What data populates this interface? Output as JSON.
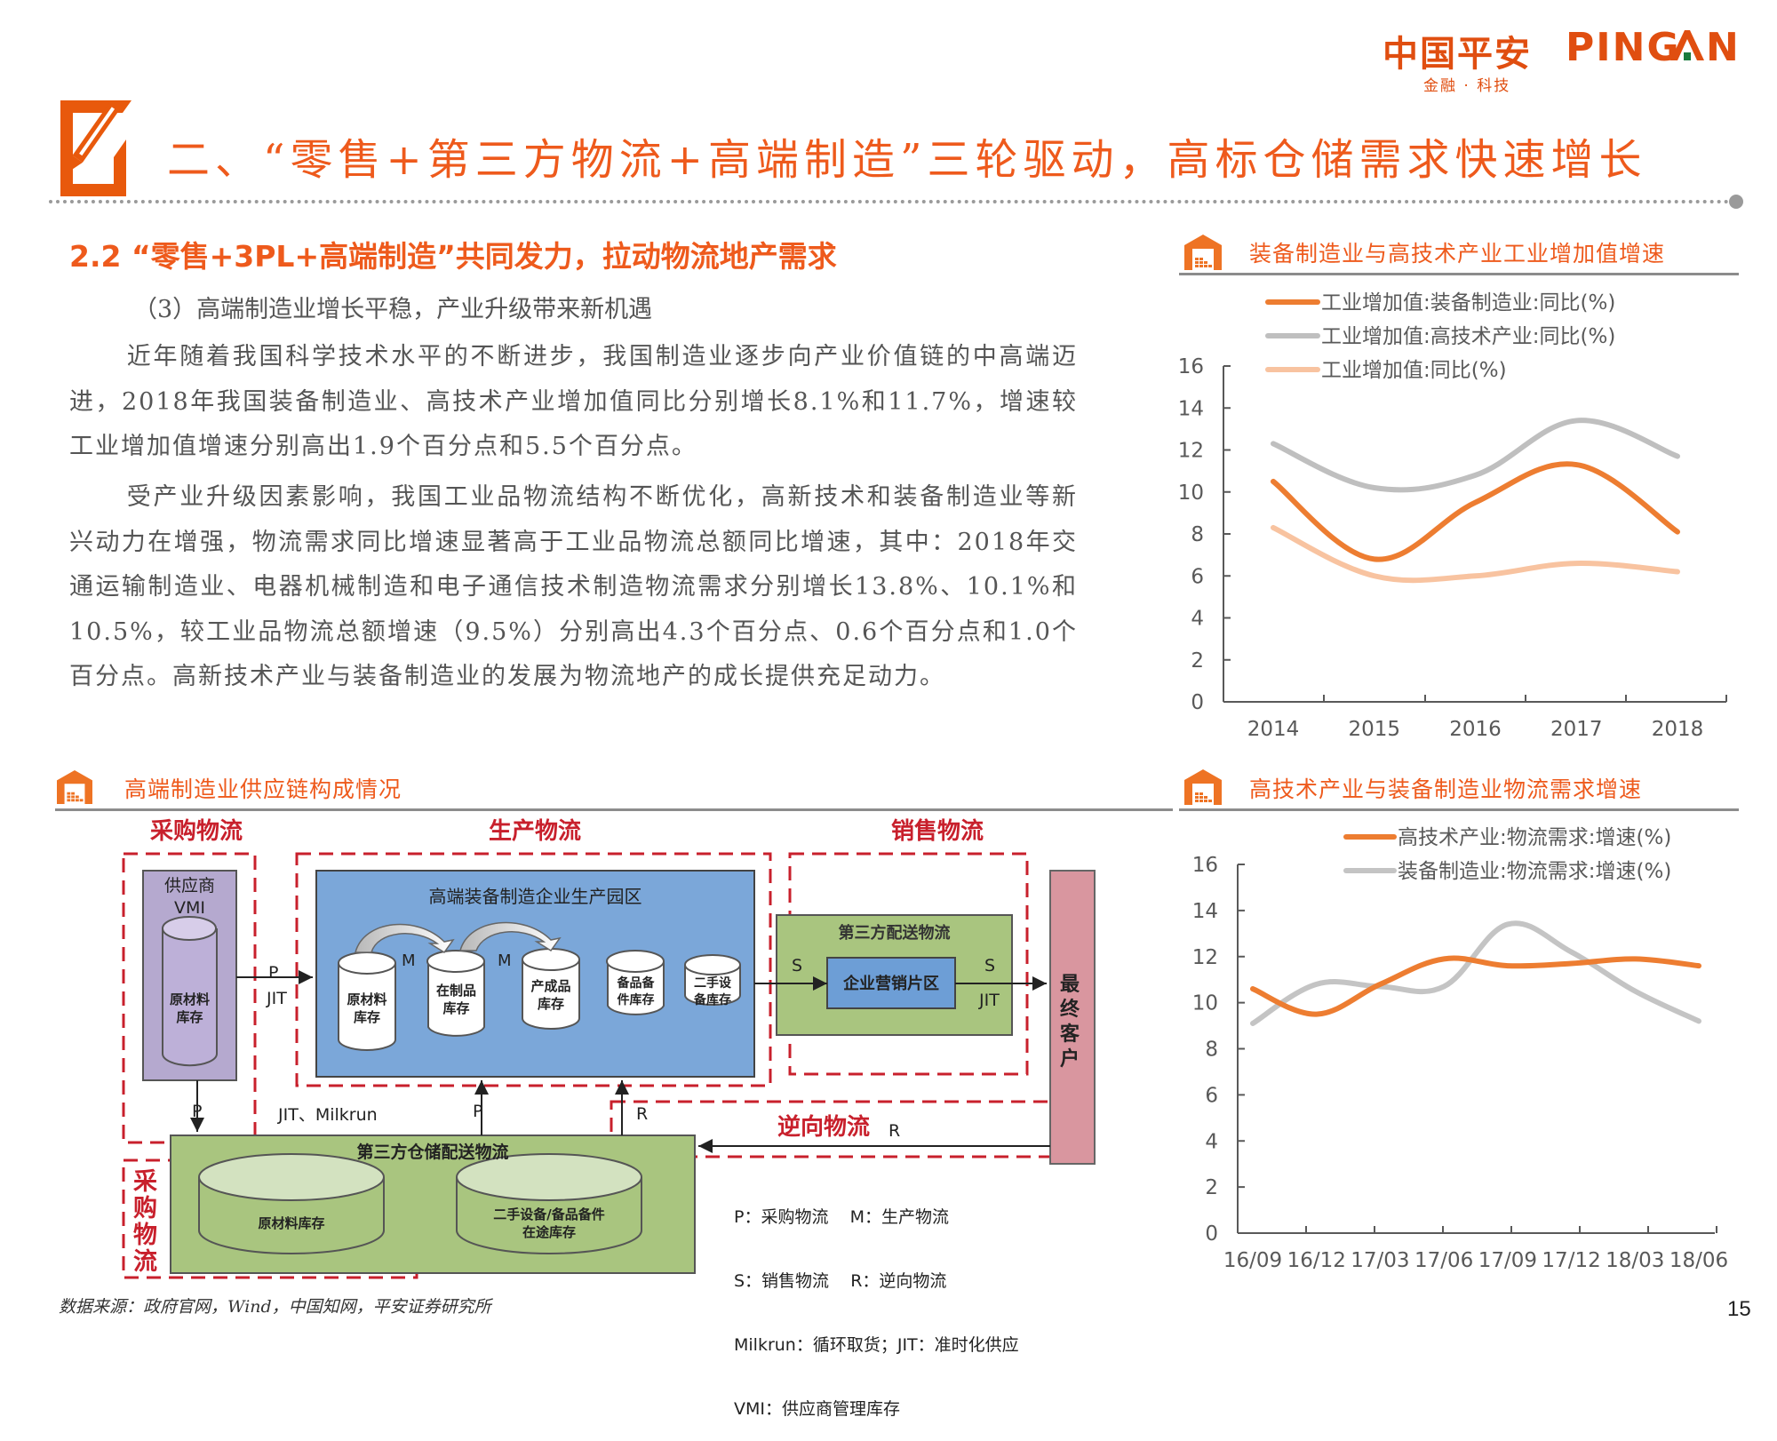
{
  "brand": {
    "logo_cn": "中国平安",
    "logo_en": "PING AN",
    "tagline": "金融 · 科技",
    "accent_color": "#E04E10",
    "logo_dot_color": "#1A7A3C"
  },
  "header": {
    "title": "二、“零售+第三方物流+高端制造”三轮驱动，高标仓储需求快速增长",
    "icon": "pencil-edit-icon"
  },
  "section": {
    "heading": "2.2 “零售+3PL+高端制造”共同发力，拉动物流地产需求",
    "subheading": "（3）高端制造业增长平稳，产业升级带来新机遇",
    "paragraphs": [
      "近年随着我国科学技术水平的不断进步，我国制造业逐步向产业价值链的中高端迈进，2018年我国装备制造业、高技术产业增加值同比分别增长8.1%和11.7%，增速较工业增加值增速分别高出1.9个百分点和5.5个百分点。",
      "受产业升级因素影响，我国工业品物流结构不断优化，高新技术和装备制造业等新兴动力在增强，物流需求同比增速显著高于工业品物流总额同比增速，其中：2018年交通运输制造业、电器机械制造和电子通信技术制造物流需求分别增长13.8%、10.1%和10.5%，较工业品物流总额增速（9.5%）分别高出4.3个百分点、0.6个百分点和1.0个百分点。高新技术产业与装备制造业的发展为物流地产的成长提供充足动力。"
    ]
  },
  "diagram": {
    "title": "高端制造业供应链构成情况",
    "icon": "warehouse-icon",
    "zones": {
      "purchase": "采购物流",
      "production": "生产物流",
      "sales": "销售物流",
      "reverse": "逆向物流",
      "purchase_vertical": "采购物流"
    },
    "supplier": {
      "title_line1": "供应商",
      "title_line2": "VMI",
      "inventory_line1": "原材料",
      "inventory_line2": "库存"
    },
    "park": {
      "title": "高端装备制造企业生产园区",
      "cylinders": [
        {
          "line1": "原材料",
          "line2": "库存"
        },
        {
          "line1": "在制品",
          "line2": "库存"
        },
        {
          "line1": "产成品",
          "line2": "库存"
        },
        {
          "line1": "备品备",
          "line2": "件库存"
        },
        {
          "line1": "二手设",
          "line2": "备库存"
        }
      ],
      "flow_label": "M"
    },
    "sales_box": {
      "title": "第三方配送物流",
      "inner": "企业营销片区",
      "s_label": "S",
      "jit_label": "JIT"
    },
    "customer": "最终客户",
    "warehouse": {
      "title": "第三方仓储配送物流",
      "cyl1": "原材料库存",
      "cyl2_line1": "二手设备/备品备件",
      "cyl2_line2": "在途库存"
    },
    "arrows": {
      "p": "P",
      "jit": "JIT",
      "jit_milkrun": "JIT、Milkrun",
      "r": "R"
    },
    "legend": [
      "P：采购物流    M：生产物流",
      "S：销售物流    R：逆向物流",
      "Milkrun：循环取货；JIT：准时化供应",
      "VMI：供应商管理库存"
    ]
  },
  "chart_data": [
    {
      "type": "line",
      "title": "装备制造业与高技术产业工业增加值增速",
      "categories": [
        "2014",
        "2015",
        "2016",
        "2017",
        "2018"
      ],
      "series": [
        {
          "name": "工业增加值:装备制造业:同比(%)",
          "color": "#ED7D31",
          "values": [
            10.5,
            6.8,
            9.5,
            11.3,
            8.1
          ]
        },
        {
          "name": "工业增加值:高技术产业:同比(%)",
          "color": "#BFBFBF",
          "values": [
            12.3,
            10.2,
            10.8,
            13.4,
            11.7
          ]
        },
        {
          "name": "工业增加值:同比(%)",
          "color": "#F8C3A0",
          "values": [
            8.3,
            6.0,
            6.0,
            6.6,
            6.2
          ]
        }
      ],
      "xlabel": "",
      "ylabel": "",
      "ylim": [
        0,
        16
      ],
      "yticks": [
        "0",
        "2",
        "4",
        "6",
        "8",
        "10",
        "12",
        "14",
        "16"
      ],
      "grid": false,
      "legend_position": "top"
    },
    {
      "type": "line",
      "title": "高技术产业与装备制造业物流需求增速",
      "categories": [
        "16/09",
        "16/12",
        "17/03",
        "17/06",
        "17/09",
        "17/12",
        "18/03",
        "18/06"
      ],
      "series": [
        {
          "name": "高技术产业:物流需求:增速(%)",
          "color": "#ED7D31",
          "values": [
            10.6,
            9.5,
            10.8,
            11.9,
            11.6,
            11.7,
            11.9,
            11.6
          ]
        },
        {
          "name": "装备制造业:物流需求:增速(%)",
          "color": "#C4C4C4",
          "values": [
            9.1,
            10.8,
            10.7,
            10.7,
            13.4,
            12.2,
            10.5,
            9.2
          ]
        }
      ],
      "xlabel": "",
      "ylabel": "",
      "ylim": [
        0,
        16
      ],
      "yticks": [
        "0",
        "2",
        "4",
        "6",
        "8",
        "10",
        "12",
        "14",
        "16"
      ],
      "grid": false,
      "legend_position": "top"
    }
  ],
  "footer": {
    "source": "数据来源：政府官网，Wind，中国知网，平安证券研究所",
    "page_number": "15"
  }
}
